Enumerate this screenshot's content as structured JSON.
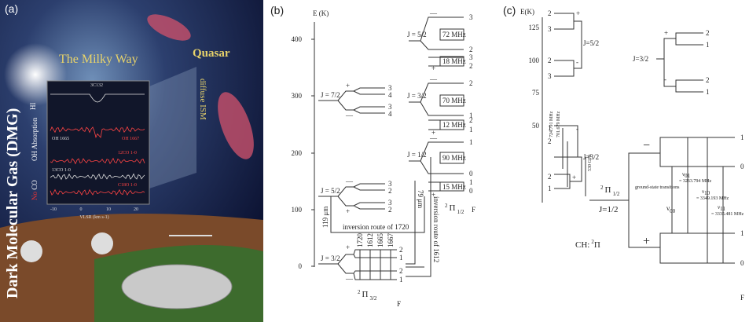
{
  "panel_a": {
    "label": "(a)",
    "title": "Dark Molecular Gas (DMG)",
    "milky_way": "The Milky Way",
    "quasar": "Quasar",
    "diffuse_ism": "diffuse ISM",
    "source": "3C132",
    "hi": "HI",
    "oh_absorption": "OH Absorption",
    "no": "No",
    "co": "CO",
    "oh1665": "OH 1665",
    "oh1667": "OH 1667",
    "co12": "12CO 1-0",
    "co13": "13CO 1-0",
    "c18o": "C18O 1-0",
    "x_ticks": [
      -10,
      0,
      10,
      20
    ],
    "x_label": "VLSR (km s-1)"
  },
  "panel_b": {
    "label": "(b)",
    "axis_label": "E (K)",
    "ticks": [
      400,
      300,
      200,
      100,
      0
    ],
    "F_label": "F",
    "pi32": {
      "J72": {
        "label": "J = 7/2",
        "parity": [
          "+",
          "—"
        ],
        "F": [
          3,
          4,
          3,
          4
        ]
      },
      "J52": {
        "label": "J = 5/2",
        "parity": [
          "—",
          "+"
        ],
        "F": [
          3,
          2,
          3,
          2
        ]
      },
      "J32": {
        "label": "J = 3/2",
        "parity": [
          "+",
          "—"
        ],
        "F": [
          2,
          1,
          2,
          1
        ],
        "lines": [
          1720,
          1612,
          1665,
          1667
        ]
      },
      "state": {
        "sup": "2",
        "symbol": "Π",
        "sub": "3/2"
      }
    },
    "pi12": {
      "J52": {
        "label": "J = 5/2",
        "parity": [
          "—",
          "+"
        ],
        "split": "72 MHz",
        "split2": "18 MHz",
        "F": [
          3,
          2,
          3,
          2
        ]
      },
      "J32": {
        "label": "J = 3/2",
        "parity": [
          "—",
          "+"
        ],
        "split": "70 MHz",
        "split2": "12 MHz",
        "F": [
          2,
          1,
          2,
          1
        ]
      },
      "J12": {
        "label": "J = 1/2",
        "parity": [
          "—",
          "+"
        ],
        "split": "90 MHz",
        "split2": "15 MHz",
        "F": [
          1,
          0,
          1,
          0
        ]
      },
      "state": {
        "sup": "2",
        "symbol": "Π",
        "sub": "1/2"
      }
    },
    "transitions": {
      "um119": "119 μm",
      "um79": "79 μm",
      "route_1720": "inversion route of 1720",
      "route_1612": "inversion route of 1612"
    }
  },
  "panel_c": {
    "label": "(c)",
    "axis_label": "E(K)",
    "ticks": [
      125,
      100,
      75,
      50
    ],
    "F_label": "F",
    "J52": {
      "label": "J=5/2",
      "parity": [
        "+",
        "-"
      ],
      "F": [
        2,
        3,
        2,
        3
      ],
      "freqs": [
        "724.791 MHz",
        "701.679 MHz"
      ]
    },
    "J32": {
      "label": "J=3/2",
      "parity": [
        "-",
        "+"
      ],
      "F": [
        1,
        2,
        2,
        1
      ],
      "freq": "530 GHz"
    },
    "state": {
      "sup": "2",
      "symbol": "Π",
      "sub": "1/2"
    },
    "J12": "J=1/2",
    "molecule": {
      "name": "CH:",
      "sup": "2",
      "symbol": "Π"
    },
    "upper": {
      "label": "J=3/2",
      "parity": [
        "+",
        "-"
      ],
      "F": [
        2,
        1,
        2,
        1
      ]
    },
    "hyperfine": {
      "parity": [
        "−",
        "+"
      ],
      "F": [
        1,
        0,
        1,
        0
      ],
      "note": "ground-state transitions",
      "lines": [
        {
          "name": "ν",
          "sub": "01",
          "freq": "= 3263.794 MHz"
        },
        {
          "name": "ν",
          "sub": "10",
          "freq": "= 3349.193 MHz"
        },
        {
          "name": "ν",
          "sub": "11",
          "freq": "= 3335.481 MHz"
        },
        {
          "name": "ν",
          "sub": "00"
        }
      ]
    }
  }
}
